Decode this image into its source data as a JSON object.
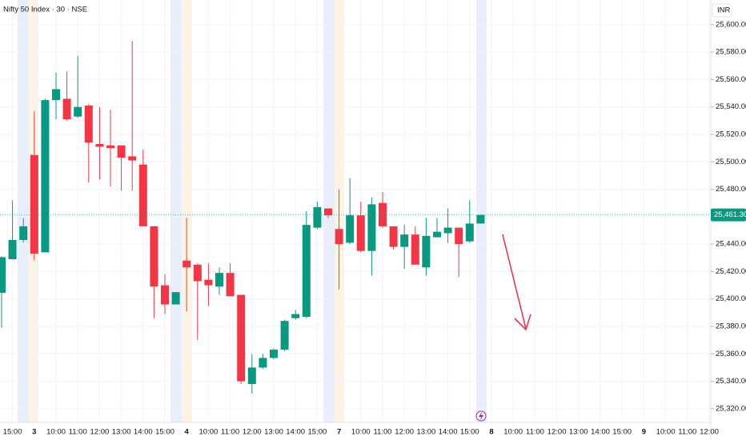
{
  "chart_data": {
    "type": "candlestick",
    "title": "Nifty 50 Index · 30 · NSE",
    "currency": "INR",
    "up_color": "#089981",
    "down_color": "#f23645",
    "categories": [
      null,
      "15:00",
      null,
      "3",
      null,
      "10:00",
      null,
      "11:00",
      null,
      "12:00",
      null,
      "13:00",
      null,
      "14:00",
      null,
      "15:00",
      null,
      "4",
      null,
      "10:00",
      null,
      "11:00",
      null,
      "12:00",
      null,
      "13:00",
      null,
      "14:00",
      null,
      "15:00",
      null,
      "7",
      null,
      "10:00",
      null,
      "11:00",
      null,
      "12:00",
      null,
      "13:00",
      null,
      "14:00",
      null,
      "15:00",
      null,
      "8",
      null,
      "10:00",
      null,
      "11:00",
      null,
      "12:00",
      null,
      "13:00",
      null,
      "14:00",
      null,
      "15:00",
      null,
      "9",
      null,
      "10:00",
      null,
      "11:00",
      null,
      "12:00"
    ],
    "open": [
      25404.5,
      25429,
      25443,
      25505,
      25434,
      25545,
      25546,
      25533,
      25541,
      25513,
      25512,
      25512,
      25504,
      25498,
      25453,
      25410,
      25396,
      25428,
      25425,
      25414,
      25409,
      25419,
      25403,
      25338,
      25350,
      25357,
      25363,
      25386,
      25387,
      25452,
      25466,
      25451,
      25441,
      25461,
      25435,
      25470,
      25453,
      25438,
      25447,
      25423,
      25445,
      25448,
      25452,
      25442,
      25455,
      null,
      null,
      null,
      null,
      null,
      null,
      null,
      null,
      null,
      null,
      null,
      null,
      null,
      null,
      null,
      null,
      null,
      null,
      null,
      null,
      null
    ],
    "high": [
      25431,
      25472,
      25459,
      25537,
      25546,
      25565,
      25566,
      25577,
      25542,
      25540,
      25538,
      25512,
      25588,
      25509,
      25453,
      25418,
      25405,
      25459,
      25426,
      25426,
      25423,
      25426,
      25403,
      25360,
      25360,
      25364,
      25385,
      25392,
      25464,
      25471,
      25466,
      25480,
      25488,
      25471,
      25474,
      25478,
      25453,
      25454,
      25453,
      25459,
      25459,
      25466,
      25452,
      25472,
      25461.3,
      null,
      null,
      null,
      null,
      null,
      null,
      null,
      null,
      null,
      null,
      null,
      null,
      null,
      null,
      null,
      null,
      null,
      null,
      null,
      null,
      null
    ],
    "low": [
      25379,
      25429,
      25441,
      25428,
      25434,
      25531,
      25530,
      25532,
      25485,
      25487,
      25482,
      25479,
      25479,
      25453,
      25386,
      25389,
      25396,
      25391,
      25370,
      25395,
      25403,
      25402,
      25338,
      25331,
      25349,
      25356,
      25362,
      25385,
      25386,
      25451,
      25459,
      25407,
      25440,
      25434,
      25417,
      25452,
      25436,
      25422,
      25425,
      25417,
      25445,
      25441,
      25416,
      25441,
      25455,
      null,
      null,
      null,
      null,
      null,
      null,
      null,
      null,
      null,
      null,
      null,
      null,
      null,
      null,
      null,
      null,
      null,
      null,
      null,
      null,
      null
    ],
    "close": [
      25430.5,
      25443,
      25453,
      25433,
      25545,
      25553,
      25531,
      25540,
      25514,
      25511,
      25510,
      25503,
      25501,
      25453,
      25409,
      25396,
      25405,
      25423,
      25413,
      25410,
      25419,
      25402,
      25340,
      25350,
      25357,
      25363,
      25384,
      25389,
      25454,
      25467,
      25461,
      25440,
      25461,
      25435,
      25469,
      25453,
      25438,
      25447,
      25425,
      25446,
      25449,
      25452,
      25440,
      25455,
      25461.3,
      null,
      null,
      null,
      null,
      null,
      null,
      null,
      null,
      null,
      null,
      null,
      null,
      null,
      null,
      null,
      null,
      null,
      null,
      null,
      null,
      null
    ],
    "ylim": [
      25310,
      25618
    ],
    "yticks": [
      {
        "value": 25320,
        "label": "25,320.00"
      },
      {
        "value": 25340,
        "label": "25,340.00"
      },
      {
        "value": 25360,
        "label": "25,360.00"
      },
      {
        "value": 25380,
        "label": "25,380.00"
      },
      {
        "value": 25400,
        "label": "25,400.00"
      },
      {
        "value": 25420,
        "label": "25,420.00"
      },
      {
        "value": 25440,
        "label": "25,440.00"
      },
      {
        "value": 25460,
        "label": "25,460.00"
      },
      {
        "value": 25480,
        "label": "25,480.00"
      },
      {
        "value": 25500,
        "label": "25,500.00"
      },
      {
        "value": 25520,
        "label": "25,520.00"
      },
      {
        "value": 25540,
        "label": "25,540.00"
      },
      {
        "value": 25560,
        "label": "25,560.00"
      },
      {
        "value": 25580,
        "label": "25,580.00"
      },
      {
        "value": 25600,
        "label": "25,600.00"
      }
    ],
    "last_price": {
      "value": 25461.3,
      "label": "25,461.30"
    },
    "grid": true
  }
}
